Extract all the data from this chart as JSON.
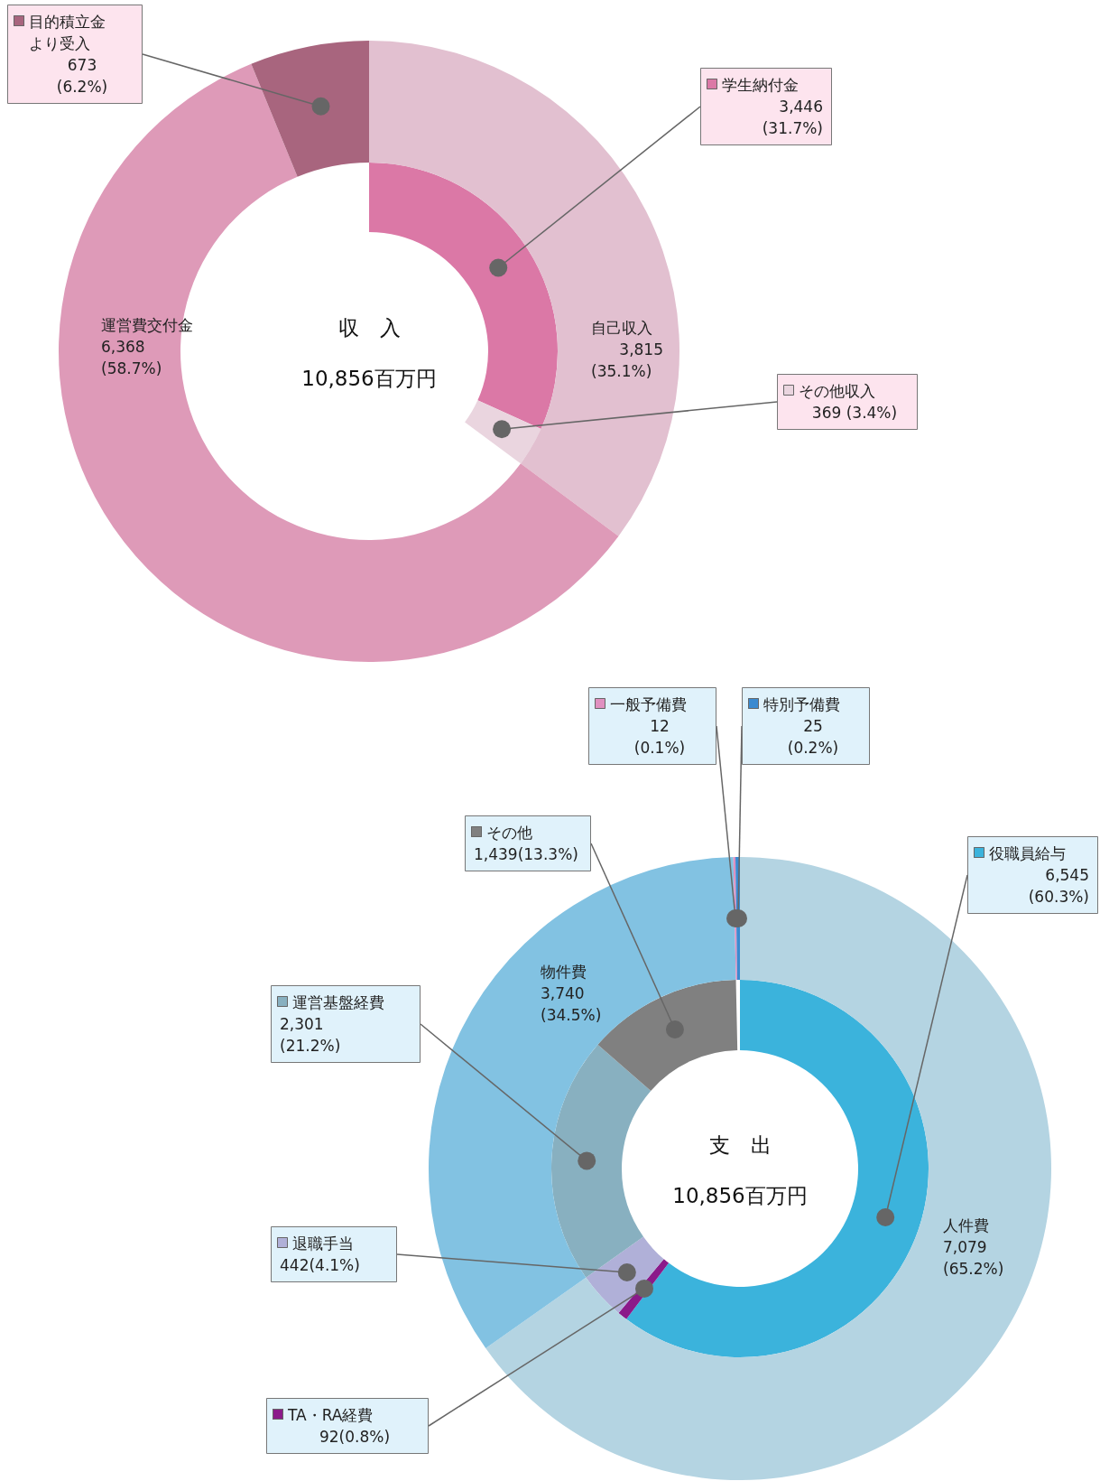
{
  "chart_data": [
    {
      "type": "donut",
      "title": "収　入",
      "subtitle": "10,856百万円",
      "legend": "top",
      "categories": [
        "自己収入",
        "運営費交付金",
        "目的積立金より受入",
        "学生納付金",
        "その他収入"
      ],
      "series": [
        {
          "values": [
            3815,
            6368,
            673,
            null,
            null
          ],
          "colors": [
            "#e2c0d0",
            "#de9ab8",
            "#a8657e",
            "#db78a6",
            "#ead5df"
          ],
          "value_labels": [
            "3,815\n(35.1%)",
            "6,368\n(58.7%)",
            "673\n(6.2%)",
            null,
            null
          ]
        },
        {
          "values": [
            null,
            null,
            null,
            3446,
            369
          ],
          "colors": [
            "#e2c0d0",
            "#de9ab8",
            "#a8657e",
            "#db78a6",
            "#ead5df"
          ],
          "value_labels": [
            null,
            null,
            null,
            "3,446\n(31.7%)",
            "369 (3.4%)"
          ]
        }
      ]
    },
    {
      "type": "donut",
      "title": "支　出",
      "subtitle": "10,856百万円",
      "legend": "top",
      "categories": [
        "人件費",
        "物件費",
        "一般予備費",
        "特別予備費",
        "役職員給与",
        "TA・RA経費",
        "退職手当",
        "運営基盤経費",
        "その他"
      ],
      "series": [
        {
          "values": [
            7079,
            3740,
            12,
            25,
            null,
            null,
            null,
            null,
            null
          ],
          "colors": [
            "#b4d4e2",
            "#82c2e2",
            "#e090c0",
            "#3a8ad0",
            "#3bb3dc",
            "#8b1a8a",
            "#b0b0d8",
            "#88b0c0",
            "#808080"
          ],
          "value_labels": [
            "7,079\n(65.2%)",
            "3,740\n(34.5%)",
            "12\n(0.1%)",
            "25\n(0.2%)",
            null,
            null,
            null,
            null,
            null
          ]
        },
        {
          "values": [
            null,
            null,
            null,
            null,
            6545,
            92,
            442,
            2301,
            1439
          ],
          "colors": [
            "#b4d4e2",
            "#82c2e2",
            "#e090c0",
            "#3a8ad0",
            "#3bb3dc",
            "#8b1a8a",
            "#b0b0d8",
            "#88b0c0",
            "#808080"
          ],
          "value_labels": [
            null,
            null,
            null,
            null,
            "6,545\n(60.3%)",
            "92(0.8%)",
            "442(4.1%)",
            "2,301\n(21.2%)",
            "1,439(13.3%)"
          ]
        }
      ]
    }
  ]
}
